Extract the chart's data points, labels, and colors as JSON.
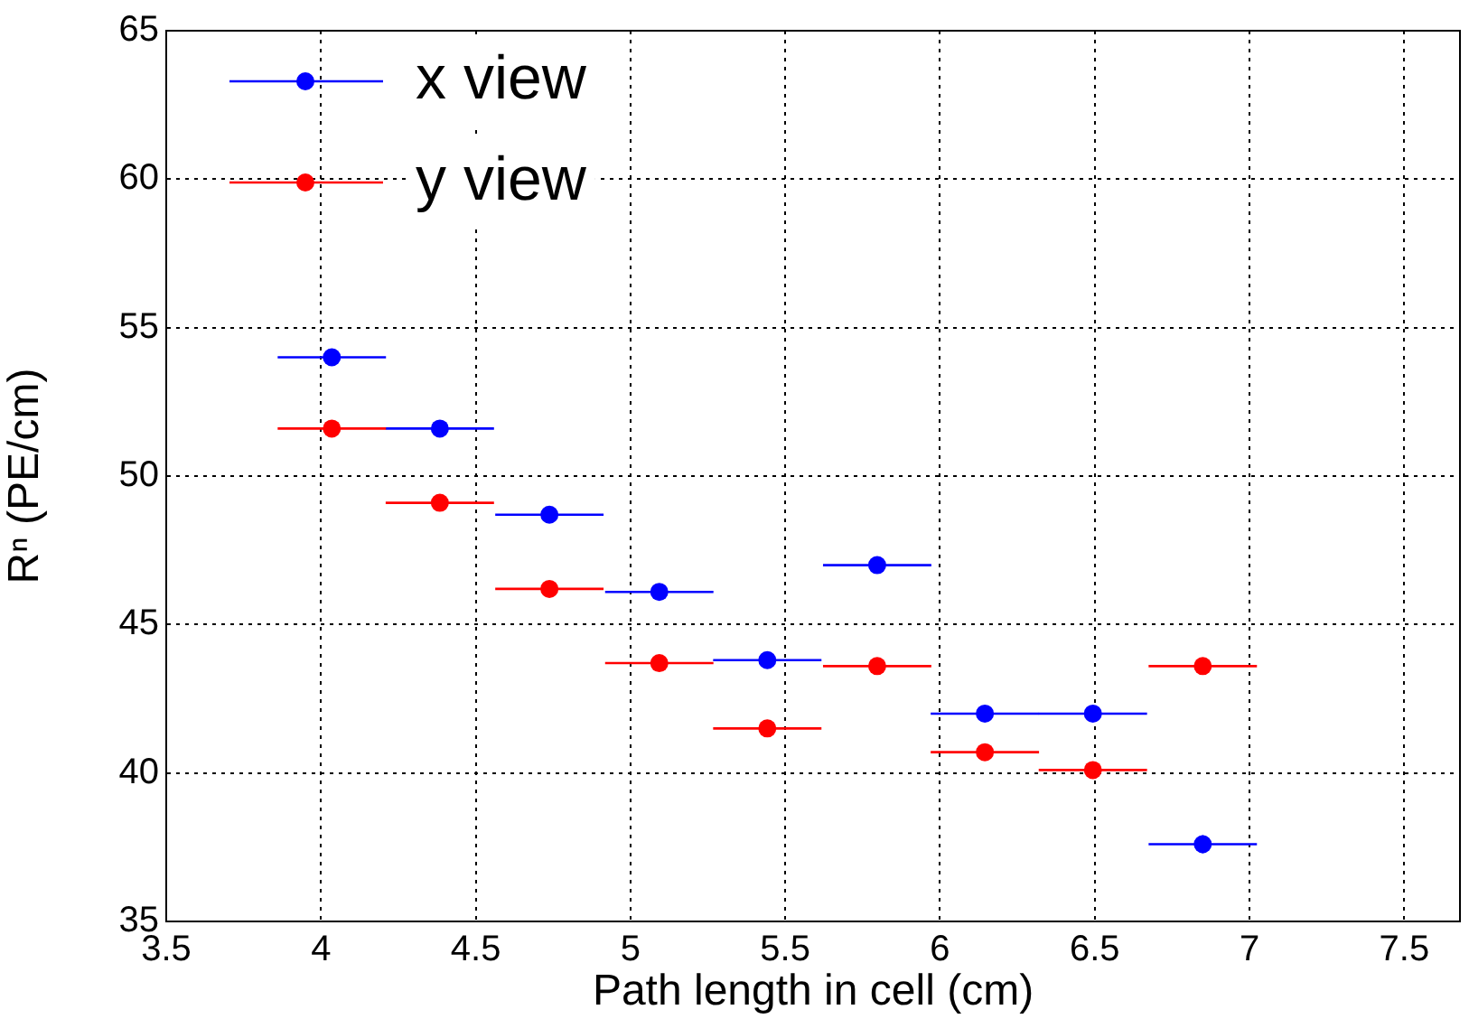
{
  "chart_data": {
    "type": "scatter",
    "xlabel": "Path length in cell (cm)",
    "ylabel": "Rⁿ (PE/cm)",
    "xlim": [
      3.5,
      7.68
    ],
    "xticks": [
      3.5,
      4,
      4.5,
      5,
      5.5,
      6,
      6.5,
      7,
      7.5
    ],
    "ylim": [
      35,
      65
    ],
    "yticks": [
      35,
      40,
      45,
      50,
      55,
      60,
      65
    ],
    "grid": true,
    "legend": "top left",
    "marker": "circle",
    "series": [
      {
        "name": "x view",
        "color": "#0000ff",
        "x": [
          4.035,
          4.384,
          4.738,
          5.093,
          5.442,
          5.797,
          6.145,
          6.494,
          6.849
        ],
        "values": [
          54.0,
          51.6,
          48.7,
          46.1,
          43.8,
          47.0,
          42.0,
          42.0,
          37.6
        ],
        "xerrors": [
          0.175,
          0.175,
          0.175,
          0.175,
          0.175,
          0.175,
          0.175,
          0.175,
          0.175
        ],
        "errors": [
          null,
          null,
          null,
          null,
          null,
          null,
          null,
          null,
          0.3
        ]
      },
      {
        "name": "y view",
        "color": "#ff0000",
        "x": [
          4.035,
          4.384,
          4.738,
          5.093,
          5.442,
          5.797,
          6.145,
          6.494,
          6.849
        ],
        "values": [
          51.6,
          49.1,
          46.2,
          43.7,
          41.5,
          43.6,
          40.7,
          40.1,
          43.6
        ],
        "xerrors": [
          0.175,
          0.175,
          0.175,
          0.175,
          0.175,
          0.175,
          0.175,
          0.175,
          0.175
        ]
      }
    ]
  }
}
